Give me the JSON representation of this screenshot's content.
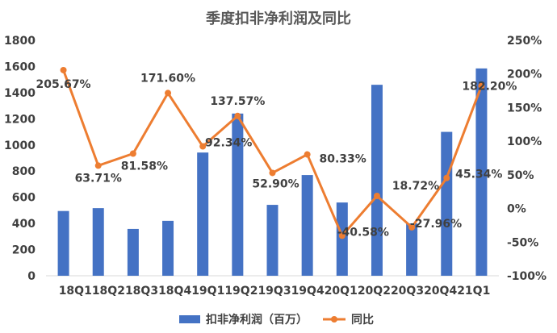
{
  "chart_data": {
    "type": "bar",
    "title": "季度扣非净利润及同比",
    "categories": [
      "18Q1",
      "18Q2",
      "18Q3",
      "18Q4",
      "19Q1",
      "19Q2",
      "19Q3",
      "19Q4",
      "20Q1",
      "20Q2",
      "20Q3",
      "20Q4",
      "21Q1"
    ],
    "category_tick_text": "18Q118Q218Q318Q419Q119Q219Q319Q420Q120Q220Q320Q421Q1",
    "series": [
      {
        "name": "扣非净利润（百万）",
        "type": "bar",
        "axis": "left",
        "color": "#4472C4",
        "values": [
          495,
          517,
          358,
          420,
          942,
          1240,
          542,
          770,
          560,
          1460,
          400,
          1100,
          1585
        ]
      },
      {
        "name": "同比",
        "type": "line",
        "axis": "right",
        "color": "#ED7D31",
        "values": [
          205.67,
          63.71,
          81.58,
          171.6,
          92.34,
          137.57,
          52.9,
          80.33,
          -40.58,
          18.72,
          -27.96,
          45.34,
          182.2
        ],
        "labels": [
          "205.67%",
          "63.71%",
          "81.58%",
          "171.60%",
          "92.34%",
          "137.57%",
          "52.90%",
          "80.33%",
          "-40.58%",
          "18.72%",
          "-27.96%",
          "45.34%",
          "182.20%"
        ]
      }
    ],
    "y_left": {
      "ylim": [
        0,
        1800
      ],
      "ticks": [
        "0",
        "200",
        "400",
        "600",
        "800",
        "1000",
        "1200",
        "1400",
        "1600",
        "1800"
      ]
    },
    "y_right": {
      "ylim": [
        -100,
        250
      ],
      "ticks": [
        "-100%",
        "-50%",
        "0%",
        "50%",
        "100%",
        "150%",
        "200%",
        "250%"
      ]
    },
    "grid": false,
    "legend_position": "bottom"
  }
}
